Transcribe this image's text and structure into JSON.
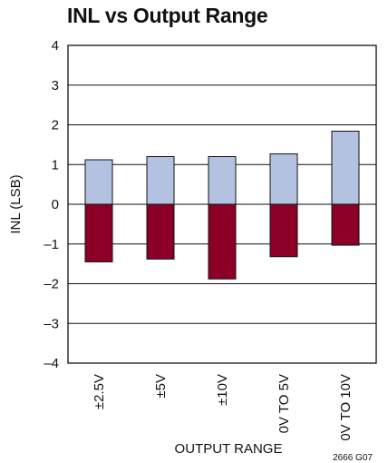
{
  "chart_data": {
    "type": "bar",
    "title": "INL vs Output Range",
    "xlabel": "OUTPUT RANGE",
    "ylabel": "INL (LSB)",
    "categories": [
      "±2.5V",
      "±5V",
      "±10V",
      "0V TO 5V",
      "0V TO 10V"
    ],
    "series": [
      {
        "values": [
          1.12,
          1.2,
          1.2,
          1.27,
          1.84
        ],
        "color": "#b3c2e0"
      },
      {
        "values": [
          -1.45,
          -1.38,
          -1.88,
          -1.32,
          -1.03
        ],
        "color": "#8c0028"
      }
    ],
    "ylim": [
      -4,
      4
    ],
    "yticks": [
      "4",
      "3",
      "2",
      "1",
      "0",
      "–1",
      "–2",
      "–3",
      "–4"
    ],
    "grid": true,
    "note": "2666 G07"
  }
}
